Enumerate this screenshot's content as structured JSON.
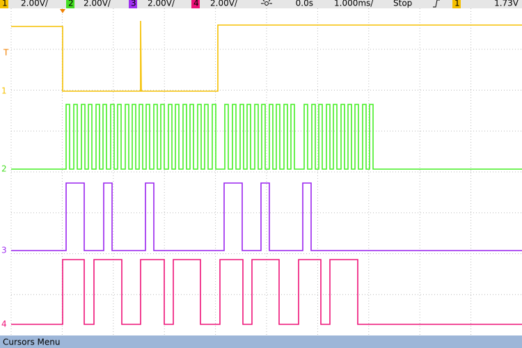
{
  "header": {
    "channels": [
      {
        "number": "1",
        "scale": "2.00V/"
      },
      {
        "number": "2",
        "scale": "2.00V/"
      },
      {
        "number": "3",
        "scale": "2.00V/"
      },
      {
        "number": "4",
        "scale": "2.00V/"
      }
    ],
    "time_offset": "0.0s",
    "time_scale": "1.000ms/",
    "run_state": "Stop",
    "trigger_channel": "1",
    "trigger_level": "1.73V"
  },
  "markers": {
    "trigger": "T",
    "channels": [
      "1",
      "2",
      "3",
      "4"
    ]
  },
  "footer": {
    "menu": "Cursors Menu"
  }
}
